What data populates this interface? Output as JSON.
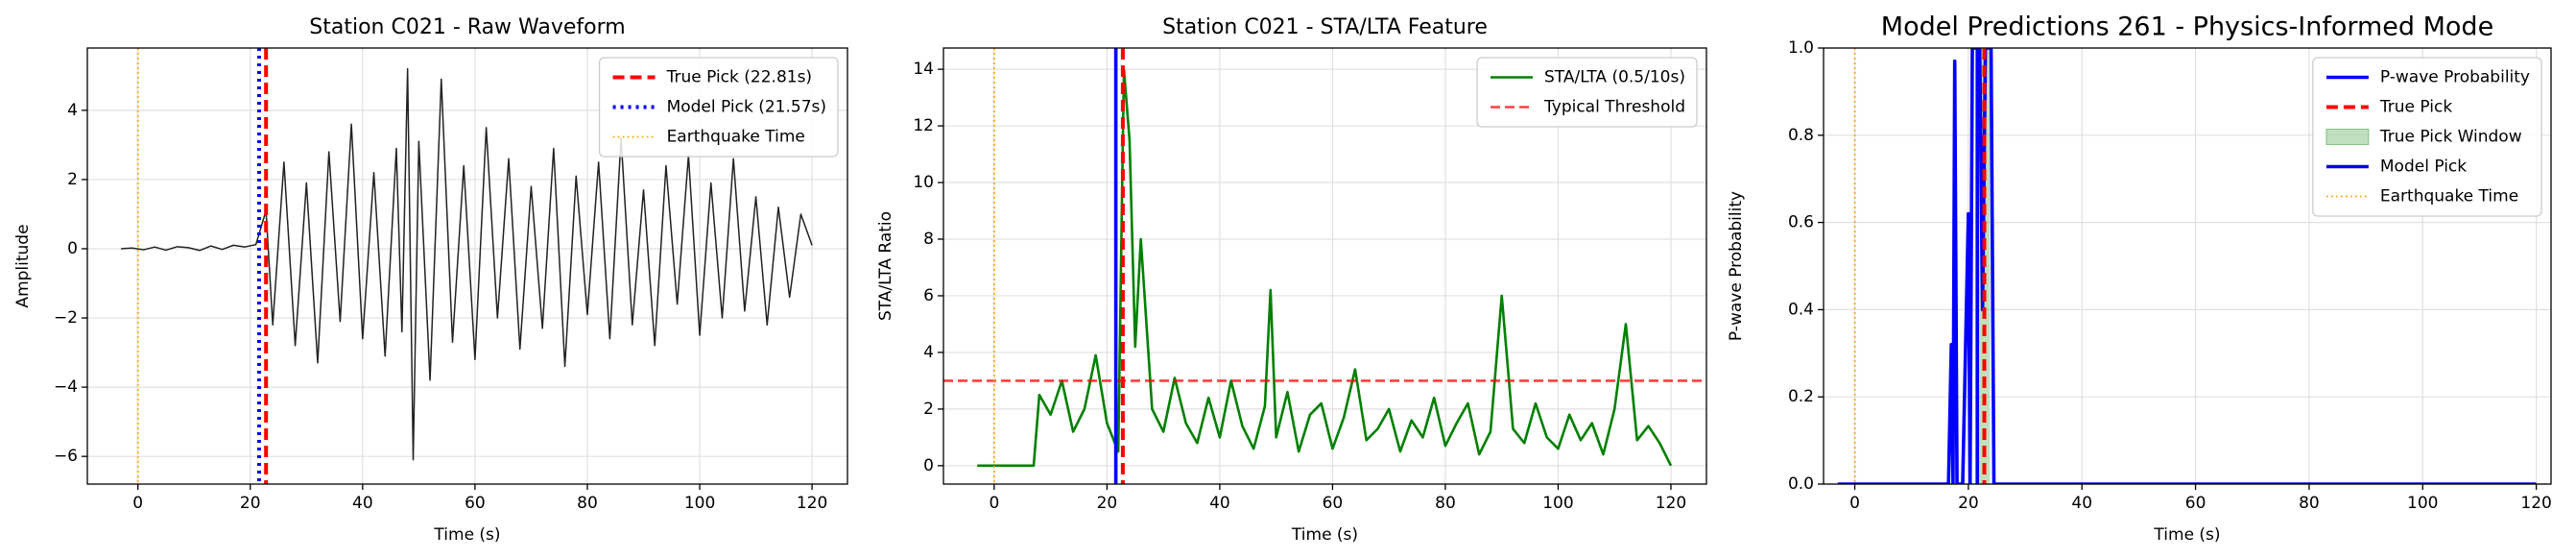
{
  "chart_data": [
    {
      "type": "line",
      "title": "Station C021 - Raw Waveform",
      "xlabel": "Time (s)",
      "ylabel": "Amplitude",
      "xlim": [
        -9,
        126.3
      ],
      "ylim": [
        -6.8,
        5.8
      ],
      "xticks": [
        0,
        20,
        40,
        60,
        80,
        100,
        120
      ],
      "yticks": [
        {
          "value": -6,
          "label": "−6"
        },
        {
          "value": -4,
          "label": "−4"
        },
        {
          "value": -2,
          "label": "−2"
        },
        0,
        2,
        4
      ],
      "grid": true,
      "legend": "upper right",
      "series": [
        {
          "color": "#222222",
          "x": [
            -3,
            -1,
            1,
            3,
            5,
            7,
            9,
            11,
            13,
            15,
            17,
            19,
            21,
            22.8,
            24,
            26,
            28,
            30,
            32,
            34,
            36,
            38,
            40,
            42,
            44,
            46,
            47,
            48,
            49,
            50,
            52,
            54,
            56,
            58,
            60,
            62,
            64,
            66,
            68,
            70,
            72,
            74,
            76,
            78,
            80,
            82,
            84,
            86,
            88,
            90,
            92,
            94,
            96,
            98,
            100,
            102,
            104,
            106,
            108,
            110,
            112,
            114,
            116,
            118,
            120
          ],
          "values": [
            0,
            0.02,
            -0.03,
            0.05,
            -0.04,
            0.06,
            0.03,
            -0.05,
            0.08,
            -0.02,
            0.1,
            0.05,
            0.12,
            1.1,
            -2.2,
            2.5,
            -2.8,
            1.9,
            -3.3,
            2.8,
            -2.1,
            3.6,
            -2.6,
            2.2,
            -3.1,
            2.9,
            -2.4,
            5.2,
            -6.1,
            3.1,
            -3.8,
            4.9,
            -2.7,
            2.4,
            -3.2,
            3.5,
            -2.0,
            2.6,
            -2.9,
            1.8,
            -2.3,
            2.9,
            -3.4,
            2.1,
            -1.9,
            2.5,
            -2.6,
            3.2,
            -2.2,
            1.7,
            -2.8,
            2.4,
            -1.6,
            2.7,
            -2.5,
            1.9,
            -2.0,
            2.6,
            -1.8,
            1.5,
            -2.2,
            1.2,
            -1.4,
            1.0,
            0.1
          ]
        }
      ],
      "overlays": [
        {
          "kind": "vline",
          "name": "True Pick (22.81s)",
          "x": 22.81,
          "color": "red",
          "style": "dashed"
        },
        {
          "kind": "vline",
          "name": "Model Pick (21.57s)",
          "x": 21.57,
          "color": "blue",
          "style": "dotted"
        },
        {
          "kind": "vline",
          "name": "Earthquake Time",
          "x": 0,
          "color": "orange",
          "style": "dotted-thin"
        }
      ]
    },
    {
      "type": "line",
      "title": "Station C021 - STA/LTA Feature",
      "xlabel": "Time (s)",
      "ylabel": "STA/LTA Ratio",
      "xlim": [
        -9,
        126.3
      ],
      "ylim": [
        -0.65,
        14.75
      ],
      "xticks": [
        0,
        20,
        40,
        60,
        80,
        100,
        120
      ],
      "yticks": [
        0,
        2,
        4,
        6,
        8,
        10,
        12,
        14
      ],
      "grid": true,
      "legend": "upper right",
      "series": [
        {
          "name": "STA/LTA (0.5/10s)",
          "color": "green",
          "x": [
            -3,
            7,
            8,
            10,
            12,
            14,
            16,
            18,
            20,
            22,
            23,
            24,
            25,
            26,
            28,
            30,
            32,
            34,
            36,
            38,
            40,
            42,
            44,
            46,
            48,
            49,
            50,
            52,
            54,
            56,
            58,
            60,
            62,
            64,
            66,
            68,
            70,
            72,
            74,
            76,
            78,
            80,
            82,
            84,
            86,
            88,
            90,
            92,
            94,
            96,
            98,
            100,
            102,
            104,
            106,
            108,
            110,
            112,
            114,
            116,
            118,
            120
          ],
          "values": [
            0,
            0,
            2.5,
            1.8,
            3.0,
            1.2,
            2.0,
            3.9,
            1.5,
            0.5,
            14.0,
            11.5,
            4.2,
            8.0,
            2.0,
            1.2,
            3.1,
            1.5,
            0.8,
            2.4,
            1.0,
            3.0,
            1.4,
            0.6,
            2.1,
            6.2,
            1.0,
            2.6,
            0.5,
            1.8,
            2.2,
            0.6,
            1.7,
            3.4,
            0.9,
            1.3,
            2.0,
            0.5,
            1.6,
            1.0,
            2.4,
            0.7,
            1.5,
            2.2,
            0.4,
            1.2,
            6.0,
            1.3,
            0.8,
            2.2,
            1.0,
            0.6,
            1.8,
            0.9,
            1.5,
            0.4,
            2.0,
            5.0,
            0.9,
            1.4,
            0.8,
            0.0
          ]
        }
      ],
      "overlays": [
        {
          "kind": "hline",
          "name": "Typical Threshold",
          "y": 3,
          "color": "red",
          "style": "dashed-soft"
        },
        {
          "kind": "vline",
          "x": 21.57,
          "color": "blue",
          "style": "solid"
        },
        {
          "kind": "vline",
          "x": 22.81,
          "color": "red",
          "style": "dashed"
        },
        {
          "kind": "vline",
          "x": 0,
          "color": "orange",
          "style": "dotted-thin"
        }
      ]
    },
    {
      "type": "line",
      "title": "Model Predictions 261 - Physics-Informed Mode",
      "xlabel": "Time (s)",
      "ylabel": "P-wave Probability",
      "xlim": [
        -5.5,
        122.6
      ],
      "ylim": [
        0,
        1
      ],
      "xticks": [
        0,
        20,
        40,
        60,
        80,
        100,
        120
      ],
      "yticks": [
        {
          "value": 0,
          "label": "0.0"
        },
        0.2,
        0.4,
        0.6,
        0.8,
        {
          "value": 1,
          "label": "1.0"
        }
      ],
      "grid": true,
      "legend": "upper right",
      "series": [
        {
          "name": "P-wave Probability",
          "color": "blue",
          "x": [
            -3,
            15,
            16.5,
            17,
            17.3,
            17.6,
            18,
            19,
            20,
            20.3,
            20.7,
            21.5,
            22,
            22.5,
            23,
            23.5,
            24,
            24.5,
            25,
            120
          ],
          "values": [
            0,
            0,
            0,
            0.32,
            0,
            0.97,
            0,
            0,
            0.62,
            0,
            1,
            1,
            1,
            0.4,
            1,
            1,
            1,
            0,
            0,
            0
          ]
        }
      ],
      "overlays": [
        {
          "kind": "vline",
          "name": "True Pick",
          "x": 22.81,
          "color": "red",
          "style": "dashed"
        },
        {
          "kind": "span",
          "name": "True Pick Window",
          "xrange": [
            21.81,
            23.81
          ],
          "color": "green"
        },
        {
          "kind": "vline",
          "name": "Model Pick",
          "x": 21.57,
          "color": "blue",
          "style": "solid"
        },
        {
          "kind": "vline",
          "name": "Earthquake Time",
          "x": 0,
          "color": "orange",
          "style": "dotted-thin"
        }
      ]
    }
  ]
}
